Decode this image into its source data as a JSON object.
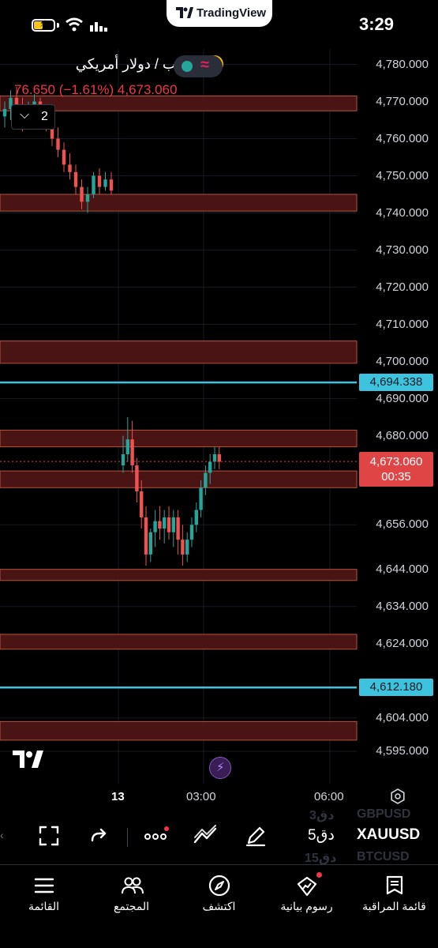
{
  "status_bar": {
    "time": "3:29",
    "battery_level": 0.45,
    "pill_app_name": "TradingView",
    "icons": [
      "battery-charging-icon",
      "wifi-icon",
      "signal-icon"
    ]
  },
  "chart": {
    "legend": {
      "title": "الذهب / دولار أمريكي",
      "values": "76.650 (−1.61%)  4,673.060",
      "collapsed_count": "2"
    },
    "price_axis": [
      "4,780.000",
      "4,770.000",
      "4,760.000",
      "4,750.000",
      "4,740.000",
      "4,730.000",
      "4,720.000",
      "4,710.000",
      "4,700.000",
      "4,690.000",
      "4,680.000",
      "4,656.000",
      "4,644.000",
      "4,634.000",
      "4,624.000",
      "4,604.000",
      "4,595.000"
    ],
    "price_tags": {
      "line_upper": "4,694.338",
      "current_price": "4,673.060",
      "countdown": "00:35",
      "line_lower": "4,612.180"
    },
    "time_axis": [
      "13",
      "03:00",
      "06:00"
    ],
    "colors": {
      "up": "#26a69a",
      "down": "#ef5350",
      "zone_fill": "#4a1414",
      "zone_border": "#b5533b",
      "horizontal_line": "#3ec3de"
    }
  },
  "chart_data": {
    "type": "candlestick",
    "symbol": "XAUUSD",
    "timeframe": "5m",
    "last_price": 4673.06,
    "change": -76.65,
    "change_percent": -1.61,
    "y_range": [
      4590,
      4785
    ],
    "horizontal_lines": [
      4694.338,
      4612.18
    ],
    "zones": [
      [
        4767.5,
        4771.5
      ],
      [
        4740.5,
        4745.0
      ],
      [
        4699.5,
        4705.5
      ],
      [
        4677.0,
        4681.5
      ],
      [
        4666.0,
        4670.5
      ],
      [
        4641.0,
        4644.0
      ],
      [
        4622.5,
        4626.5
      ],
      [
        4598.0,
        4603.0
      ]
    ],
    "candles_session1": [
      [
        4766,
        4770,
        4763,
        4768
      ],
      [
        4768,
        4773,
        4765,
        4771
      ],
      [
        4771,
        4774,
        4767,
        4769
      ],
      [
        4769,
        4771,
        4762,
        4765
      ],
      [
        4765,
        4770,
        4763,
        4768
      ],
      [
        4768,
        4772,
        4764,
        4770
      ],
      [
        4770,
        4771,
        4764,
        4766
      ],
      [
        4766,
        4769,
        4762,
        4764
      ],
      [
        4764,
        4766,
        4758,
        4760
      ],
      [
        4760,
        4763,
        4755,
        4757
      ],
      [
        4757,
        4759,
        4751,
        4753
      ],
      [
        4753,
        4756,
        4749,
        4751
      ],
      [
        4751,
        4753,
        4745,
        4747
      ],
      [
        4747,
        4749,
        4741,
        4743
      ],
      [
        4743,
        4747,
        4740,
        4745
      ],
      [
        4745,
        4751,
        4744,
        4750
      ],
      [
        4750,
        4752,
        4745,
        4747
      ],
      [
        4747,
        4751,
        4746,
        4749
      ],
      [
        4749,
        4751,
        4745,
        4746
      ]
    ],
    "candles_session2": [
      [
        4672,
        4680,
        4670,
        4675
      ],
      [
        4675,
        4685,
        4673,
        4679
      ],
      [
        4679,
        4684,
        4670,
        4672
      ],
      [
        4672,
        4674,
        4662,
        4665
      ],
      [
        4665,
        4668,
        4655,
        4658
      ],
      [
        4658,
        4661,
        4645,
        4648
      ],
      [
        4648,
        4655,
        4646,
        4654
      ],
      [
        4654,
        4660,
        4650,
        4657
      ],
      [
        4657,
        4661,
        4652,
        4655
      ],
      [
        4655,
        4660,
        4651,
        4658
      ],
      [
        4658,
        4661,
        4652,
        4654
      ],
      [
        4654,
        4660,
        4650,
        4658
      ],
      [
        4658,
        4660,
        4648,
        4652
      ],
      [
        4652,
        4656,
        4645,
        4648
      ],
      [
        4648,
        4654,
        4646,
        4652
      ],
      [
        4652,
        4658,
        4650,
        4656
      ],
      [
        4656,
        4662,
        4654,
        4660
      ],
      [
        4660,
        4668,
        4658,
        4666
      ],
      [
        4666,
        4672,
        4664,
        4670
      ],
      [
        4670,
        4675,
        4667,
        4673
      ],
      [
        4673,
        4677,
        4671,
        4675
      ],
      [
        4675,
        4677,
        4671,
        4673
      ]
    ]
  },
  "toolbar": {
    "symbol": "XAUUSD",
    "timeframe": "5دق",
    "watch_above": "GBPUSD",
    "watch_above_tf": "3دق",
    "watch_below": "BTCUSD",
    "watch_below_tf": "15دق",
    "icons": [
      "pen-icon",
      "drawing-tools-icon",
      "more-icon",
      "redo-icon",
      "fullscreen-icon"
    ]
  },
  "bottom_nav": {
    "items": [
      {
        "label": "قائمة المراقبة",
        "icon": "watchlist-icon"
      },
      {
        "label": "رسوم بيانية",
        "icon": "charts-icon"
      },
      {
        "label": "اكتشف",
        "icon": "compass-icon"
      },
      {
        "label": "المجتمع",
        "icon": "community-icon"
      },
      {
        "label": "القائمة",
        "icon": "menu-icon"
      }
    ]
  }
}
